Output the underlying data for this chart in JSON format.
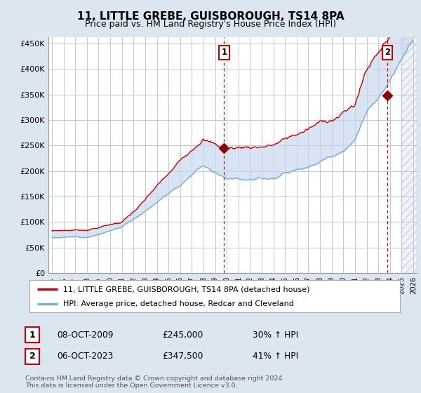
{
  "title": "11, LITTLE GREBE, GUISBOROUGH, TS14 8PA",
  "subtitle": "Price paid vs. HM Land Registry's House Price Index (HPI)",
  "ylabel_ticks": [
    "£0",
    "£50K",
    "£100K",
    "£150K",
    "£200K",
    "£250K",
    "£300K",
    "£350K",
    "£400K",
    "£450K"
  ],
  "ytick_values": [
    0,
    50000,
    100000,
    150000,
    200000,
    250000,
    300000,
    350000,
    400000,
    450000
  ],
  "ylim": [
    0,
    462000
  ],
  "xlim_years": [
    1994.7,
    2026.3
  ],
  "xtick_years": [
    1995,
    1996,
    1997,
    1998,
    1999,
    2000,
    2001,
    2002,
    2003,
    2004,
    2005,
    2006,
    2007,
    2008,
    2009,
    2010,
    2011,
    2012,
    2013,
    2014,
    2015,
    2016,
    2017,
    2018,
    2019,
    2020,
    2021,
    2022,
    2023,
    2024,
    2025,
    2026
  ],
  "sale1": {
    "year": 2009.77,
    "price": 245000,
    "label": "1",
    "date": "08-OCT-2009",
    "pct": "30% ↑ HPI"
  },
  "sale2": {
    "year": 2023.77,
    "price": 347500,
    "label": "2",
    "date": "06-OCT-2023",
    "pct": "41% ↑ HPI"
  },
  "legend_house_label": "11, LITTLE GREBE, GUISBOROUGH, TS14 8PA (detached house)",
  "legend_hpi_label": "HPI: Average price, detached house, Redcar and Cleveland",
  "footer": "Contains HM Land Registry data © Crown copyright and database right 2024.\nThis data is licensed under the Open Government Licence v3.0.",
  "house_color": "#cc0000",
  "hpi_color": "#7bafd4",
  "fill_color": "#c8d8ee",
  "background_color": "#dce6f1",
  "plot_bg_color": "#ffffff",
  "grid_color": "#c0c8d8",
  "vline_color": "#cc0000",
  "marker_color": "#8b0000",
  "hatch_start_year": 2025.0
}
